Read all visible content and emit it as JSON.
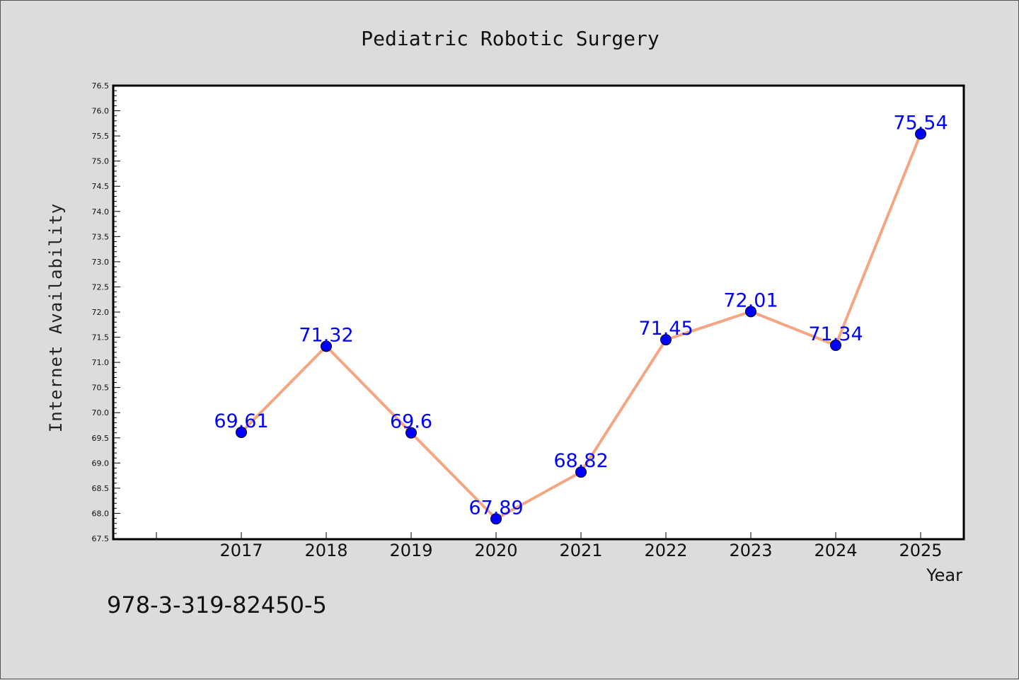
{
  "chart_data": {
    "type": "line",
    "title": "Pediatric Robotic Surgery",
    "xlabel": "Year",
    "ylabel": "Internet Availability",
    "categories": [
      "2017",
      "2018",
      "2019",
      "2020",
      "2021",
      "2022",
      "2023",
      "2024",
      "2025"
    ],
    "series": [
      {
        "values": [
          69.61,
          71.32,
          69.6,
          67.89,
          68.82,
          71.45,
          72.01,
          71.34,
          75.54
        ],
        "labels": [
          "69.61",
          "71.32",
          "69.6",
          "67.89",
          "68.82",
          "71.45",
          "72.01",
          "71.34",
          "75.54"
        ],
        "line_color": "#f4a582",
        "marker_color": "#0000ff"
      }
    ],
    "ylim": [
      67.5,
      76.5
    ],
    "yticks": [
      "67.5",
      "68.0",
      "68.5",
      "69.0",
      "69.5",
      "70.0",
      "70.5",
      "71.0",
      "71.5",
      "72.0",
      "72.5",
      "73.0",
      "73.5",
      "74.0",
      "74.5",
      "75.0",
      "75.5",
      "76.0",
      "76.5"
    ],
    "grid": false,
    "footer_text": "978-3-319-82450-5"
  }
}
